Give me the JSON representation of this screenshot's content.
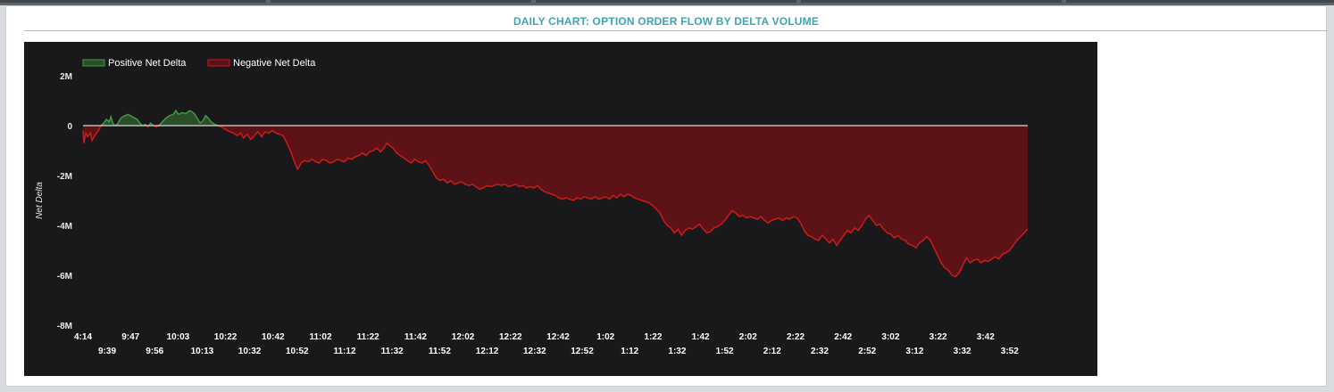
{
  "page": {
    "title": "DAILY CHART: OPTION ORDER FLOW BY DELTA VOLUME"
  },
  "colors": {
    "background": "#19191b",
    "positive_line": "#3f9a3f",
    "positive_fill": "#2a4d2a",
    "negative_line": "#d01a1a",
    "negative_fill": "#5c1216",
    "zero_line": "#d8d8d0",
    "title": "#3fa3b3"
  },
  "chart_data": {
    "type": "area",
    "title": "DAILY CHART: OPTION ORDER FLOW BY DELTA VOLUME",
    "ylabel": "Net Delta",
    "xlabel": "",
    "ylim": [
      -8000000,
      2000000
    ],
    "y_ticks": [
      "2M",
      "0",
      "-2M",
      "-4M",
      "-6M",
      "-8M"
    ],
    "x_tick_labels_top": [
      "4:14",
      "9:47",
      "10:03",
      "10:22",
      "10:42",
      "11:02",
      "11:22",
      "11:42",
      "12:02",
      "12:22",
      "12:42",
      "1:02",
      "1:22",
      "1:42",
      "2:02",
      "2:22",
      "2:42",
      "3:02",
      "3:22",
      "3:42"
    ],
    "x_tick_labels_bottom": [
      "9:39",
      "9:56",
      "10:13",
      "10:32",
      "10:52",
      "11:12",
      "11:32",
      "11:52",
      "12:12",
      "12:32",
      "12:52",
      "1:12",
      "1:32",
      "1:52",
      "2:12",
      "2:32",
      "2:52",
      "3:12",
      "3:32",
      "3:52"
    ],
    "legend": {
      "placement": "top-left",
      "entries": [
        "Positive Net Delta",
        "Negative Net Delta"
      ]
    },
    "grid": false,
    "series": [
      {
        "name": "Net Delta",
        "points": [
          [
            0,
            -200000
          ],
          [
            1,
            -700000
          ],
          [
            3,
            -300000
          ],
          [
            5,
            -450000
          ],
          [
            8,
            -300000
          ],
          [
            10,
            -600000
          ],
          [
            13,
            -400000
          ],
          [
            17,
            -200000
          ],
          [
            20,
            0
          ],
          [
            23,
            100000
          ],
          [
            26,
            250000
          ],
          [
            29,
            150000
          ],
          [
            31,
            350000
          ],
          [
            33,
            100000
          ],
          [
            35,
            0
          ],
          [
            38,
            50000
          ],
          [
            42,
            300000
          ],
          [
            45,
            380000
          ],
          [
            50,
            450000
          ],
          [
            55,
            350000
          ],
          [
            60,
            250000
          ],
          [
            63,
            100000
          ],
          [
            66,
            0
          ],
          [
            69,
            50000
          ],
          [
            72,
            -50000
          ],
          [
            75,
            100000
          ],
          [
            78,
            0
          ],
          [
            81,
            -50000
          ],
          [
            84,
            0
          ],
          [
            88,
            150000
          ],
          [
            92,
            300000
          ],
          [
            96,
            400000
          ],
          [
            100,
            450000
          ],
          [
            103,
            600000
          ],
          [
            106,
            450000
          ],
          [
            110,
            520000
          ],
          [
            114,
            480000
          ],
          [
            118,
            600000
          ],
          [
            121,
            550000
          ],
          [
            124,
            450000
          ],
          [
            127,
            280000
          ],
          [
            130,
            100000
          ],
          [
            133,
            200000
          ],
          [
            136,
            400000
          ],
          [
            139,
            300000
          ],
          [
            142,
            150000
          ],
          [
            146,
            50000
          ],
          [
            150,
            0
          ],
          [
            154,
            -50000
          ],
          [
            158,
            -150000
          ],
          [
            163,
            -250000
          ],
          [
            167,
            -300000
          ],
          [
            171,
            -400000
          ],
          [
            175,
            -300000
          ],
          [
            178,
            -500000
          ],
          [
            182,
            -350000
          ],
          [
            186,
            -550000
          ],
          [
            190,
            -400000
          ],
          [
            194,
            -250000
          ],
          [
            198,
            -450000
          ],
          [
            202,
            -250000
          ],
          [
            206,
            -300000
          ],
          [
            210,
            -200000
          ],
          [
            214,
            -300000
          ],
          [
            218,
            -350000
          ],
          [
            222,
            -400000
          ],
          [
            226,
            -700000
          ],
          [
            230,
            -1000000
          ],
          [
            234,
            -1400000
          ],
          [
            238,
            -1750000
          ],
          [
            242,
            -1500000
          ],
          [
            246,
            -1400000
          ],
          [
            250,
            -1450000
          ],
          [
            254,
            -1350000
          ],
          [
            258,
            -1450000
          ],
          [
            262,
            -1500000
          ],
          [
            266,
            -1350000
          ],
          [
            270,
            -1400000
          ],
          [
            274,
            -1500000
          ],
          [
            278,
            -1450000
          ],
          [
            282,
            -1350000
          ],
          [
            286,
            -1400000
          ],
          [
            290,
            -1450000
          ],
          [
            294,
            -1300000
          ],
          [
            298,
            -1350000
          ],
          [
            302,
            -1250000
          ],
          [
            306,
            -1200000
          ],
          [
            310,
            -1100000
          ],
          [
            314,
            -1200000
          ],
          [
            318,
            -1050000
          ],
          [
            322,
            -1000000
          ],
          [
            326,
            -900000
          ],
          [
            330,
            -1050000
          ],
          [
            334,
            -900000
          ],
          [
            337,
            -700000
          ],
          [
            340,
            -800000
          ],
          [
            344,
            -900000
          ],
          [
            348,
            -1100000
          ],
          [
            352,
            -1200000
          ],
          [
            356,
            -1300000
          ],
          [
            360,
            -1400000
          ],
          [
            364,
            -1500000
          ],
          [
            368,
            -1350000
          ],
          [
            372,
            -1450000
          ],
          [
            376,
            -1500000
          ],
          [
            380,
            -1400000
          ],
          [
            384,
            -1600000
          ],
          [
            388,
            -1850000
          ],
          [
            392,
            -2100000
          ],
          [
            396,
            -2200000
          ],
          [
            400,
            -2150000
          ],
          [
            404,
            -2300000
          ],
          [
            408,
            -2200000
          ],
          [
            412,
            -2350000
          ],
          [
            416,
            -2300000
          ],
          [
            420,
            -2250000
          ],
          [
            424,
            -2350000
          ],
          [
            428,
            -2400000
          ],
          [
            432,
            -2350000
          ],
          [
            436,
            -2450000
          ],
          [
            440,
            -2550000
          ],
          [
            444,
            -2500000
          ],
          [
            448,
            -2400000
          ],
          [
            452,
            -2450000
          ],
          [
            456,
            -2400000
          ],
          [
            460,
            -2350000
          ],
          [
            464,
            -2400000
          ],
          [
            468,
            -2350000
          ],
          [
            472,
            -2450000
          ],
          [
            476,
            -2400000
          ],
          [
            480,
            -2350000
          ],
          [
            484,
            -2450000
          ],
          [
            488,
            -2400000
          ],
          [
            492,
            -2500000
          ],
          [
            496,
            -2450000
          ],
          [
            500,
            -2500000
          ],
          [
            504,
            -2400000
          ],
          [
            508,
            -2550000
          ],
          [
            512,
            -2650000
          ],
          [
            516,
            -2700000
          ],
          [
            520,
            -2750000
          ],
          [
            524,
            -2800000
          ],
          [
            528,
            -2900000
          ],
          [
            532,
            -2950000
          ],
          [
            536,
            -2900000
          ],
          [
            540,
            -2950000
          ],
          [
            544,
            -3000000
          ],
          [
            548,
            -2900000
          ],
          [
            552,
            -2950000
          ],
          [
            556,
            -2850000
          ],
          [
            560,
            -2900000
          ],
          [
            564,
            -2950000
          ],
          [
            568,
            -2850000
          ],
          [
            572,
            -2950000
          ],
          [
            576,
            -2900000
          ],
          [
            580,
            -2850000
          ],
          [
            584,
            -2950000
          ],
          [
            588,
            -2800000
          ],
          [
            592,
            -2900000
          ],
          [
            596,
            -2750000
          ],
          [
            600,
            -2850000
          ],
          [
            604,
            -2750000
          ],
          [
            608,
            -2800000
          ],
          [
            612,
            -2900000
          ],
          [
            616,
            -2950000
          ],
          [
            620,
            -3000000
          ],
          [
            624,
            -3050000
          ],
          [
            628,
            -3100000
          ],
          [
            632,
            -3200000
          ],
          [
            636,
            -3350000
          ],
          [
            640,
            -3500000
          ],
          [
            644,
            -3800000
          ],
          [
            648,
            -4000000
          ],
          [
            652,
            -4100000
          ],
          [
            656,
            -4300000
          ],
          [
            660,
            -4150000
          ],
          [
            664,
            -4400000
          ],
          [
            668,
            -4200000
          ],
          [
            672,
            -4100000
          ],
          [
            676,
            -4150000
          ],
          [
            680,
            -4050000
          ],
          [
            684,
            -3950000
          ],
          [
            688,
            -4150000
          ],
          [
            692,
            -4300000
          ],
          [
            696,
            -4250000
          ],
          [
            700,
            -4100000
          ],
          [
            704,
            -4050000
          ],
          [
            708,
            -3950000
          ],
          [
            712,
            -3800000
          ],
          [
            716,
            -3600000
          ],
          [
            720,
            -3400000
          ],
          [
            724,
            -3500000
          ],
          [
            728,
            -3650000
          ],
          [
            732,
            -3600000
          ],
          [
            736,
            -3700000
          ],
          [
            740,
            -3650000
          ],
          [
            744,
            -3700000
          ],
          [
            748,
            -3750000
          ],
          [
            752,
            -3650000
          ],
          [
            756,
            -3800000
          ],
          [
            760,
            -3900000
          ],
          [
            764,
            -3800000
          ],
          [
            768,
            -3750000
          ],
          [
            772,
            -3700000
          ],
          [
            776,
            -3800000
          ],
          [
            780,
            -3700000
          ],
          [
            784,
            -3750000
          ],
          [
            788,
            -3650000
          ],
          [
            792,
            -3700000
          ],
          [
            796,
            -3900000
          ],
          [
            800,
            -4200000
          ],
          [
            804,
            -4400000
          ],
          [
            808,
            -4450000
          ],
          [
            812,
            -4550000
          ],
          [
            816,
            -4600000
          ],
          [
            820,
            -4400000
          ],
          [
            824,
            -4550000
          ],
          [
            828,
            -4700000
          ],
          [
            832,
            -4550000
          ],
          [
            836,
            -4800000
          ],
          [
            840,
            -4600000
          ],
          [
            844,
            -4400000
          ],
          [
            848,
            -4200000
          ],
          [
            852,
            -4300000
          ],
          [
            856,
            -4100000
          ],
          [
            860,
            -4200000
          ],
          [
            864,
            -4000000
          ],
          [
            868,
            -3750000
          ],
          [
            872,
            -3600000
          ],
          [
            876,
            -3800000
          ],
          [
            880,
            -4000000
          ],
          [
            884,
            -3950000
          ],
          [
            888,
            -4150000
          ],
          [
            892,
            -4300000
          ],
          [
            896,
            -4350000
          ],
          [
            900,
            -4500000
          ],
          [
            904,
            -4400000
          ],
          [
            908,
            -4550000
          ],
          [
            912,
            -4600000
          ],
          [
            916,
            -4750000
          ],
          [
            920,
            -4800000
          ],
          [
            924,
            -4900000
          ],
          [
            928,
            -4700000
          ],
          [
            932,
            -4600000
          ],
          [
            936,
            -4450000
          ],
          [
            940,
            -4600000
          ],
          [
            944,
            -4900000
          ],
          [
            948,
            -5200000
          ],
          [
            952,
            -5500000
          ],
          [
            956,
            -5700000
          ],
          [
            960,
            -5800000
          ],
          [
            964,
            -6000000
          ],
          [
            968,
            -6050000
          ],
          [
            972,
            -5900000
          ],
          [
            976,
            -5600000
          ],
          [
            980,
            -5300000
          ],
          [
            984,
            -5500000
          ],
          [
            988,
            -5400000
          ],
          [
            992,
            -5350000
          ],
          [
            996,
            -5500000
          ],
          [
            1000,
            -5400000
          ],
          [
            1004,
            -5450000
          ],
          [
            1008,
            -5350000
          ],
          [
            1012,
            -5250000
          ],
          [
            1016,
            -5350000
          ],
          [
            1020,
            -5150000
          ],
          [
            1024,
            -5100000
          ],
          [
            1028,
            -5000000
          ],
          [
            1032,
            -4800000
          ],
          [
            1036,
            -4600000
          ],
          [
            1040,
            -4450000
          ],
          [
            1044,
            -4300000
          ],
          [
            1048,
            -4150000
          ]
        ]
      }
    ]
  }
}
